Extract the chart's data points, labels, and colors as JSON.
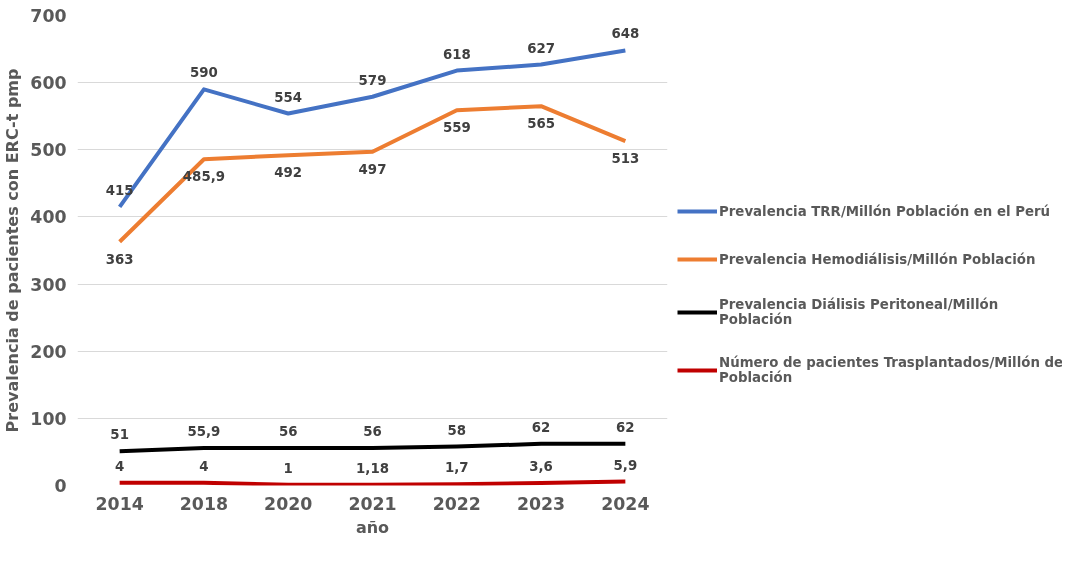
{
  "chart_data": {
    "type": "line",
    "xlabel": "año",
    "ylabel": "Prevalencia de pacientes con ERC-t pmp",
    "categories": [
      "2014",
      "2018",
      "2020",
      "2021",
      "2022",
      "2023",
      "2024"
    ],
    "ylim": [
      0,
      700
    ],
    "yticks": [
      0,
      100,
      200,
      300,
      400,
      500,
      600,
      700
    ],
    "grid": "y",
    "legend": "right",
    "marker": "none",
    "line_style": "solid",
    "series": [
      {
        "name": "Prevalencia TRR/Millón Población en el Perú",
        "color": "#4472c4",
        "values": [
          415,
          590,
          554,
          579,
          618,
          627,
          648
        ],
        "value_labels": [
          "415",
          "590",
          "554",
          "579",
          "618",
          "627",
          "648"
        ]
      },
      {
        "name": "Prevalencia Hemodiálisis/Millón Población",
        "color": "#ed7d31",
        "values": [
          363,
          485.9,
          492,
          497,
          559,
          565,
          513
        ],
        "value_labels": [
          "363",
          "485,9",
          "492",
          "497",
          "559",
          "565",
          "513"
        ]
      },
      {
        "name": "Prevalencia Diálisis Peritoneal/Millón Población",
        "color": "#000000",
        "values": [
          51,
          55.9,
          56,
          56,
          58,
          62,
          62
        ],
        "value_labels": [
          "51",
          "55,9",
          "56",
          "56",
          "58",
          "62",
          "62"
        ]
      },
      {
        "name": "Número de pacientes Trasplantados/Millón de Población",
        "color": "#c00000",
        "values": [
          4,
          4,
          1,
          1.18,
          1.7,
          3.6,
          5.9
        ],
        "value_labels": [
          "4",
          "4",
          "1",
          "1,18",
          "1,7",
          "3,6",
          "5,9"
        ]
      }
    ]
  }
}
